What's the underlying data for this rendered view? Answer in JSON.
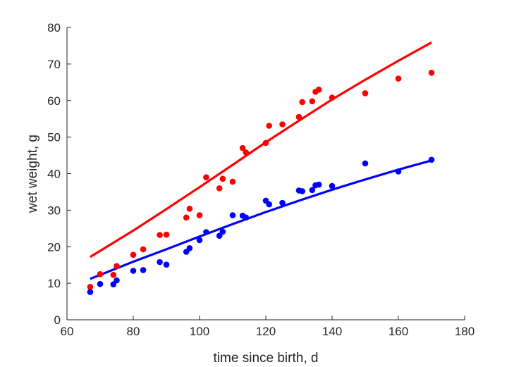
{
  "chart_data": {
    "type": "scatter",
    "title": "",
    "xlabel": "time since birth, d",
    "ylabel": "wet weight, g",
    "xlim": [
      60,
      180
    ],
    "ylim": [
      0,
      80
    ],
    "xticks": [
      60,
      80,
      100,
      120,
      140,
      160,
      180
    ],
    "yticks": [
      0,
      10,
      20,
      30,
      40,
      50,
      60,
      70,
      80
    ],
    "grid": false,
    "legend": "none",
    "series": [
      {
        "kind": "points",
        "color": "#ff0000",
        "points": [
          [
            67,
            9.0
          ],
          [
            70,
            12.5
          ],
          [
            74,
            12.3
          ],
          [
            75,
            14.7
          ],
          [
            80,
            17.8
          ],
          [
            83,
            19.3
          ],
          [
            88,
            23.2
          ],
          [
            90,
            23.3
          ],
          [
            96,
            28.0
          ],
          [
            97,
            30.4
          ],
          [
            100,
            28.6
          ],
          [
            102,
            39.0
          ],
          [
            106,
            36.0
          ],
          [
            107,
            38.6
          ],
          [
            110,
            37.8
          ],
          [
            113,
            47.0
          ],
          [
            114,
            45.8
          ],
          [
            120,
            48.4
          ],
          [
            121,
            53.1
          ],
          [
            125,
            53.5
          ],
          [
            130,
            55.5
          ],
          [
            131,
            59.6
          ],
          [
            134,
            59.8
          ],
          [
            135,
            62.4
          ],
          [
            136,
            63.0
          ],
          [
            140,
            60.8
          ],
          [
            150,
            62.0
          ],
          [
            160,
            66.0
          ],
          [
            170,
            67.6
          ]
        ]
      },
      {
        "kind": "line",
        "color": "#ff0000",
        "points": [
          [
            67,
            17.2
          ],
          [
            80,
            24.4
          ],
          [
            90,
            30.3
          ],
          [
            100,
            36.3
          ],
          [
            110,
            42.4
          ],
          [
            120,
            48.6
          ],
          [
            130,
            54.5
          ],
          [
            140,
            60.3
          ],
          [
            150,
            65.7
          ],
          [
            160,
            70.9
          ],
          [
            170,
            75.9
          ]
        ]
      },
      {
        "kind": "points",
        "color": "#0000ff",
        "points": [
          [
            67,
            7.6
          ],
          [
            70,
            9.8
          ],
          [
            74,
            9.7
          ],
          [
            75,
            10.8
          ],
          [
            80,
            13.4
          ],
          [
            83,
            13.6
          ],
          [
            88,
            15.8
          ],
          [
            90,
            15.1
          ],
          [
            96,
            18.6
          ],
          [
            97,
            19.6
          ],
          [
            100,
            21.8
          ],
          [
            102,
            24.0
          ],
          [
            106,
            23.0
          ],
          [
            107,
            24.1
          ],
          [
            110,
            28.6
          ],
          [
            113,
            28.5
          ],
          [
            114,
            28.0
          ],
          [
            120,
            32.6
          ],
          [
            121,
            31.6
          ],
          [
            125,
            32.0
          ],
          [
            130,
            35.4
          ],
          [
            131,
            35.2
          ],
          [
            134,
            35.5
          ],
          [
            135,
            36.8
          ],
          [
            136,
            37.0
          ],
          [
            140,
            36.6
          ],
          [
            150,
            42.8
          ],
          [
            160,
            40.6
          ],
          [
            170,
            43.8
          ]
        ]
      },
      {
        "kind": "line",
        "color": "#0000ff",
        "points": [
          [
            67,
            11.2
          ],
          [
            80,
            15.9
          ],
          [
            90,
            19.3
          ],
          [
            100,
            22.8
          ],
          [
            110,
            26.2
          ],
          [
            120,
            29.5
          ],
          [
            130,
            32.6
          ],
          [
            140,
            35.6
          ],
          [
            150,
            38.4
          ],
          [
            160,
            41.1
          ],
          [
            170,
            43.6
          ]
        ]
      }
    ]
  }
}
